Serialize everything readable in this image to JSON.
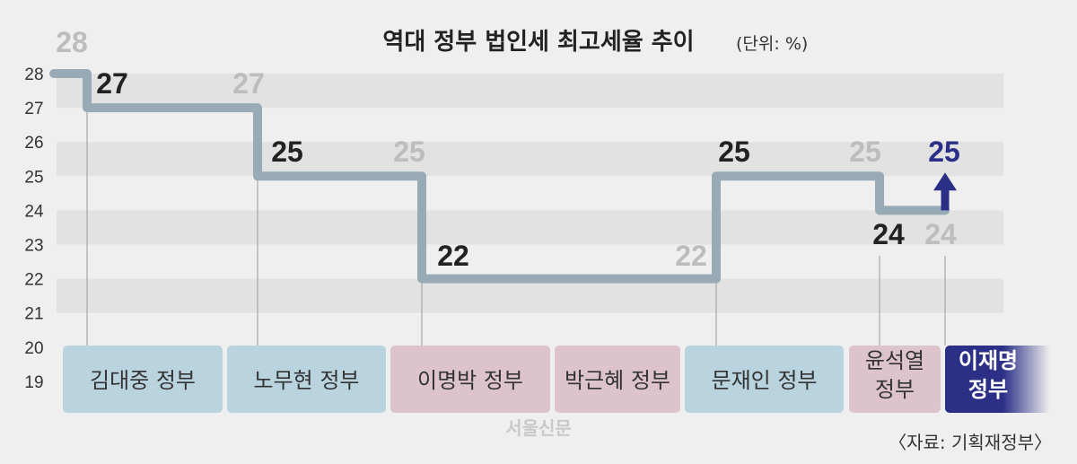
{
  "chart_data": {
    "type": "line",
    "title": "역대 정부 법인세 최고세율 추이",
    "unit": "(단위: %)",
    "ylim": [
      19,
      28
    ],
    "yticks": [
      "28",
      "27",
      "26",
      "25",
      "24",
      "23",
      "22",
      "21",
      "20",
      "19"
    ],
    "grid": "alternating bands",
    "step": true,
    "series": [
      {
        "government": "김대중 정부",
        "start": 28,
        "end": 27,
        "start_label": "28",
        "end_label": "27"
      },
      {
        "government": "노무현 정부",
        "start": 27,
        "end": 25,
        "start_label": "27",
        "end_label": "25"
      },
      {
        "government": "이명박 정부",
        "start": 25,
        "end": 22,
        "start_label": "25",
        "end_label": "22"
      },
      {
        "government": "박근혜 정부",
        "start": 22,
        "end": 22
      },
      {
        "government": "문재인 정부",
        "start": 22,
        "end": 25,
        "start_label": "22",
        "end_label": "25"
      },
      {
        "government": "윤석열 정부",
        "start": 25,
        "end": 24,
        "start_label": "25",
        "end_label": "24"
      },
      {
        "government": "이재명 정부",
        "start": 24,
        "end": 25,
        "start_label": "24",
        "end_label": "25"
      }
    ],
    "labels": [
      {
        "text": "28",
        "value": 28,
        "style": "gray"
      },
      {
        "text": "27",
        "value": 27,
        "style": "black"
      },
      {
        "text": "27",
        "value": 27,
        "style": "gray"
      },
      {
        "text": "25",
        "value": 25,
        "style": "black"
      },
      {
        "text": "25",
        "value": 25,
        "style": "gray"
      },
      {
        "text": "22",
        "value": 22,
        "style": "black"
      },
      {
        "text": "22",
        "value": 22,
        "style": "gray"
      },
      {
        "text": "25",
        "value": 25,
        "style": "black"
      },
      {
        "text": "25",
        "value": 25,
        "style": "gray"
      },
      {
        "text": "24",
        "value": 24,
        "style": "black"
      },
      {
        "text": "24",
        "value": 24,
        "style": "gray"
      },
      {
        "text": "25",
        "value": 25,
        "style": "navy"
      }
    ],
    "governments": [
      {
        "name": "김대중 정부",
        "color": "#b9d3df"
      },
      {
        "name": "노무현 정부",
        "color": "#b9d3df"
      },
      {
        "name": "이명박 정부",
        "color": "#dcc3cc"
      },
      {
        "name": "박근혜 정부",
        "color": "#dcc3cc"
      },
      {
        "name": "문재인 정부",
        "color": "#b9d3df"
      },
      {
        "name": "윤석열 정부",
        "color": "#dcc3cc",
        "lines": [
          "윤석열",
          "정부"
        ]
      },
      {
        "name": "이재명 정부",
        "color": "#2b2f86",
        "lines": [
          "이재명",
          "정부"
        ]
      }
    ],
    "colors": {
      "line": "#98aab5",
      "highlight": "#2b2f86",
      "band": "#e2e2e2"
    }
  },
  "watermark": "서울신문",
  "source": "〈자료: 기획재정부〉"
}
